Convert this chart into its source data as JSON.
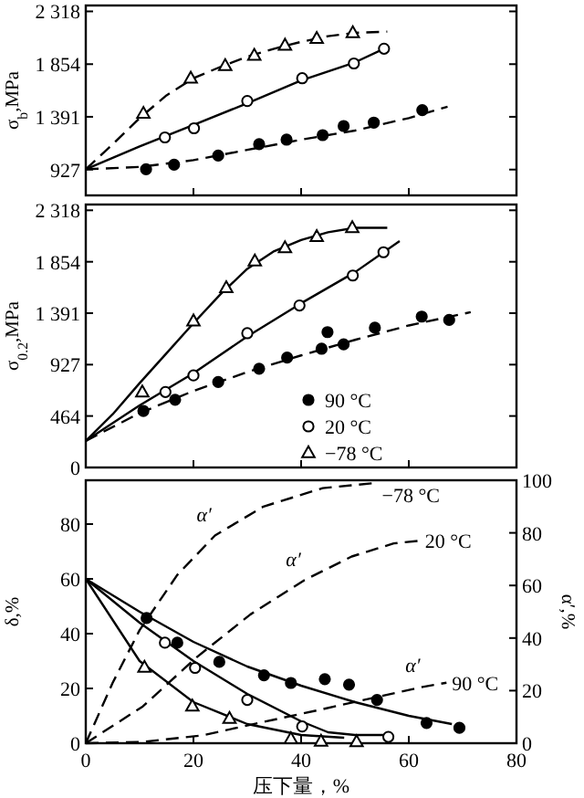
{
  "chart_data": [
    {
      "type": "scatter",
      "ylabel": "σ$_{b}$,MPa",
      "xlim": [
        0,
        80
      ],
      "ylim": [
        700,
        2370
      ],
      "tick_labels": "y",
      "legend": false,
      "xticks": [
        {
          "value": 0,
          "label": null
        },
        {
          "value": 20,
          "label": null
        },
        {
          "value": 40,
          "label": null
        },
        {
          "value": 60,
          "label": null
        },
        {
          "value": 80,
          "label": null
        }
      ],
      "yticks": [
        927,
        {
          "value": 1391,
          "label": "1 391"
        },
        {
          "value": 1854,
          "label": "1 854"
        },
        {
          "value": 2318,
          "label": "2 318"
        }
      ],
      "series": [
        {
          "type": "scatter",
          "marker": "circle",
          "color": "#000000",
          "x": [
            11.2,
            16.4,
            24.6,
            32.2,
            37.3,
            44,
            47.9,
            53.5,
            62.5
          ],
          "values": [
            930,
            970,
            1050,
            1150,
            1190,
            1230,
            1310,
            1340,
            1450
          ]
        },
        {
          "type": "scatter",
          "marker": "circle",
          "color": "#ffffff",
          "x": [
            14.7,
            20.1,
            30,
            40.2,
            49.8,
            55.4
          ],
          "values": [
            1210,
            1290,
            1530,
            1730,
            1860,
            1990
          ]
        },
        {
          "type": "scatter",
          "marker": "triangle",
          "color": "#ffffff",
          "x": [
            10.7,
            19.5,
            25.9,
            31.3,
            37,
            42.9,
            49.6
          ],
          "values": [
            1420,
            1730,
            1840,
            1930,
            2020,
            2080,
            2130
          ]
        },
        {
          "type": "line",
          "marker": "none",
          "line_style": "dashed",
          "color": "#000000",
          "x": [
            0,
            10,
            20,
            30,
            40,
            50,
            60,
            67.2
          ],
          "values": [
            930,
            950,
            1010,
            1100,
            1190,
            1270,
            1380,
            1480
          ]
        },
        {
          "type": "line",
          "marker": "none",
          "line_style": "solid",
          "color": "#000000",
          "x": [
            0,
            10,
            20,
            30,
            40,
            50,
            55.4
          ],
          "values": [
            930,
            1130,
            1320,
            1510,
            1710,
            1870,
            1990
          ]
        },
        {
          "type": "line",
          "marker": "none",
          "line_style": "dashed",
          "color": "#000000",
          "x": [
            0,
            5,
            10,
            15,
            20,
            25,
            30,
            35,
            40,
            45,
            50,
            56
          ],
          "values": [
            930,
            1150,
            1380,
            1580,
            1730,
            1830,
            1920,
            1990,
            2050,
            2100,
            2130,
            2140
          ]
        }
      ]
    },
    {
      "type": "scatter",
      "ylabel": "σ$_{0.2}$,MPa",
      "xlim": [
        0,
        80
      ],
      "ylim": [
        0,
        2370
      ],
      "tick_labels": "y",
      "legend": "bottom",
      "xticks": [
        {
          "value": 0,
          "label": null
        },
        {
          "value": 20,
          "label": null
        },
        {
          "value": 40,
          "label": null
        },
        {
          "value": 60,
          "label": null
        },
        {
          "value": 80,
          "label": null
        }
      ],
      "yticks": [
        0,
        464,
        927,
        {
          "value": 1391,
          "label": "1 391"
        },
        {
          "value": 1854,
          "label": "1 854"
        },
        {
          "value": 2318,
          "label": "2 318"
        }
      ],
      "series": [
        {
          "type": "scatter",
          "name": "90 °C",
          "marker": "circle",
          "color": "#000000",
          "x": [
            10.7,
            16.6,
            24.6,
            32.2,
            37.4,
            43.8,
            44.9,
            47.9,
            53.7,
            62.4,
            67.5
          ],
          "values": [
            510,
            610,
            770,
            890,
            990,
            1070,
            1220,
            1110,
            1260,
            1360,
            1330
          ]
        },
        {
          "type": "scatter",
          "name": "20 °C",
          "marker": "circle",
          "color": "#ffffff",
          "x": [
            14.8,
            20,
            30,
            39.7,
            49.6,
            55.3
          ],
          "values": [
            680,
            830,
            1210,
            1460,
            1730,
            1940
          ]
        },
        {
          "type": "scatter",
          "name": "−78 °C",
          "marker": "triangle",
          "color": "#ffffff",
          "x": [
            10.5,
            20,
            26.1,
            31.4,
            37,
            42.9,
            49.5
          ],
          "values": [
            680,
            1320,
            1620,
            1860,
            1980,
            2080,
            2160
          ]
        },
        {
          "type": "line",
          "marker": "none",
          "line_style": "dashed",
          "color": "#000000",
          "x": [
            0,
            10,
            20,
            30,
            40,
            50,
            60,
            71.5
          ],
          "values": [
            240,
            490,
            690,
            860,
            1010,
            1150,
            1280,
            1400
          ]
        },
        {
          "type": "line",
          "marker": "none",
          "line_style": "solid",
          "color": "#000000",
          "x": [
            0,
            10,
            20,
            30,
            40,
            50,
            58.3
          ],
          "values": [
            240,
            560,
            850,
            1180,
            1480,
            1760,
            2040
          ]
        },
        {
          "type": "line",
          "marker": "none",
          "line_style": "solid",
          "color": "#000000",
          "x": [
            0,
            5,
            10,
            15,
            20,
            25,
            30,
            35,
            40,
            45,
            50,
            56
          ],
          "values": [
            240,
            480,
            760,
            1030,
            1300,
            1560,
            1790,
            1950,
            2050,
            2120,
            2160,
            2160
          ]
        }
      ]
    },
    {
      "type": "scatter",
      "xlabel": "压下量，%",
      "ylabel": "δ,%",
      "y2label": "α′,%",
      "xlim": [
        0,
        80
      ],
      "ylim": [
        0,
        96
      ],
      "y2lim": [
        0,
        100
      ],
      "legend": false,
      "xticks": [
        0,
        20,
        40,
        60,
        80
      ],
      "yticks": [
        0,
        20,
        40,
        60,
        80
      ],
      "y2ticks": [
        0,
        20,
        40,
        60,
        80,
        100
      ],
      "annotations": [
        {
          "text": "α′",
          "x": 24,
          "y": 75.8
        },
        {
          "text": "α′",
          "x": 40.6,
          "y": 59.5
        },
        {
          "text": "α′",
          "x": 62.8,
          "y": 20.6
        }
      ],
      "series": [
        {
          "type": "scatter",
          "marker": "circle",
          "color": "#000000",
          "x": [
            11.3,
            17,
            24.8,
            33.1,
            38.1,
            44.4,
            48.9,
            54.1,
            63.3,
            69.4
          ],
          "values": [
            45.7,
            36.7,
            29.7,
            24.8,
            22,
            23.4,
            21.4,
            15.8,
            7.4,
            5.6
          ]
        },
        {
          "type": "scatter",
          "marker": "circle",
          "color": "#ffffff",
          "x": [
            14.7,
            20.3,
            30,
            40.2,
            56.2
          ],
          "values": [
            36.7,
            27.5,
            15.8,
            6.1,
            2.3
          ]
        },
        {
          "type": "scatter",
          "marker": "triangle",
          "color": "#ffffff",
          "x": [
            10.9,
            19.8,
            26.7,
            38.1,
            43.7,
            50.3
          ],
          "values": [
            27.7,
            13.5,
            9,
            1.6,
            0.7,
            0.5
          ]
        },
        {
          "type": "line",
          "marker": "none",
          "line_style": "solid",
          "color": "#000000",
          "x": [
            0,
            10,
            20,
            30,
            40,
            50,
            60,
            68
          ],
          "values": [
            60,
            48,
            37,
            28,
            21,
            15,
            10,
            7
          ]
        },
        {
          "type": "line",
          "marker": "none",
          "line_style": "solid",
          "color": "#000000",
          "x": [
            0,
            10,
            20,
            30,
            40,
            45,
            50,
            56
          ],
          "values": [
            60,
            44,
            30,
            18,
            8,
            4,
            3,
            3
          ]
        },
        {
          "type": "line",
          "marker": "none",
          "line_style": "solid",
          "color": "#000000",
          "x": [
            0,
            10,
            20,
            30,
            40,
            48
          ],
          "values": [
            60,
            30,
            15,
            7,
            3,
            2
          ]
        },
        {
          "type": "line",
          "name": "−78 °C",
          "axis": "y2",
          "marker": "none",
          "line_style": "dashed",
          "color": "#000000",
          "x": [
            0,
            5,
            10,
            17,
            24,
            33,
            44,
            54
          ],
          "values": [
            0,
            23,
            43,
            64,
            79,
            90,
            97,
            99
          ]
        },
        {
          "type": "line",
          "name": "20 °C",
          "axis": "y2",
          "marker": "none",
          "line_style": "dashed",
          "color": "#000000",
          "x": [
            0,
            10.6,
            20.6,
            30.6,
            40.6,
            49.4,
            57.2,
            62
          ],
          "values": [
            0,
            14,
            32.7,
            49,
            62,
            71,
            76,
            77
          ]
        },
        {
          "type": "line",
          "name": "90 °C",
          "axis": "y2",
          "marker": "none",
          "line_style": "dashed",
          "color": "#000000",
          "x": [
            0,
            10.6,
            21.7,
            32.8,
            43.9,
            53.9,
            62.8,
            67
          ],
          "values": [
            0,
            0.5,
            3,
            8,
            12.9,
            17.5,
            21.5,
            23
          ]
        }
      ]
    }
  ]
}
